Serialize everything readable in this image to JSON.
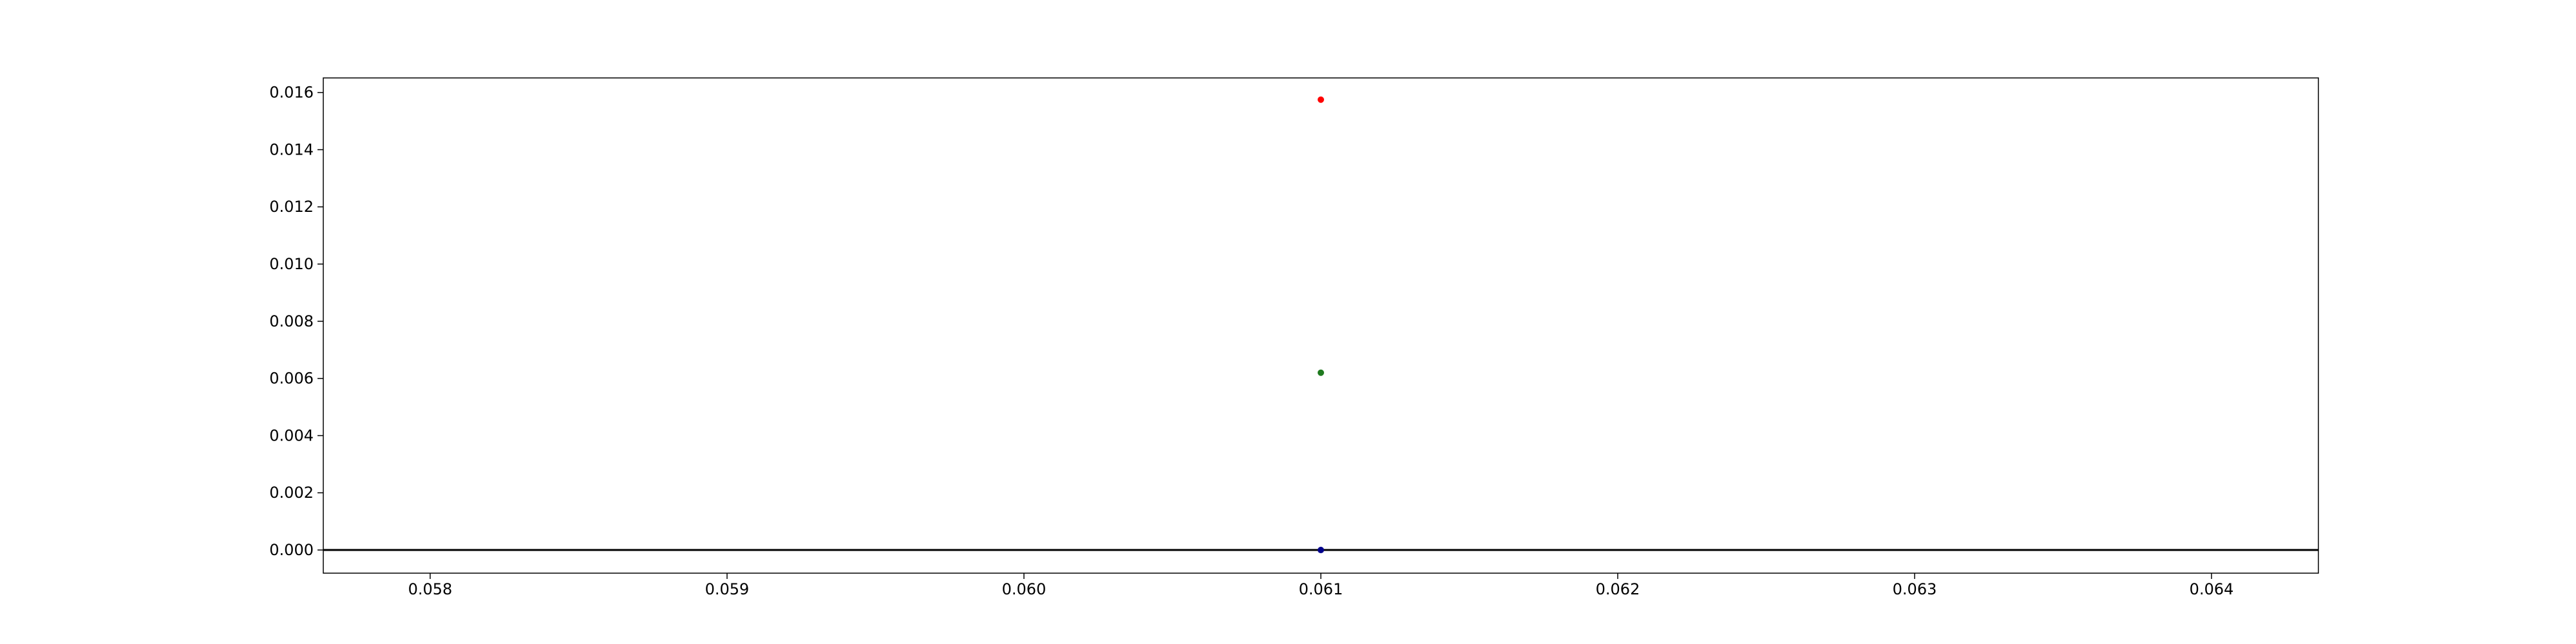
{
  "chart_data": {
    "type": "scatter",
    "title": "",
    "xlabel": "",
    "ylabel": "",
    "xlim": [
      0.05764,
      0.06436
    ],
    "ylim": [
      -0.00081,
      0.01651
    ],
    "grid": false,
    "x_ticks": [
      "0.058",
      "0.059",
      "0.060",
      "0.061",
      "0.062",
      "0.063",
      "0.064"
    ],
    "y_ticks": [
      "0.000",
      "0.002",
      "0.004",
      "0.006",
      "0.008",
      "0.010",
      "0.012",
      "0.014",
      "0.016"
    ],
    "hline": {
      "y": 0.0,
      "color": "#000000"
    },
    "points": [
      {
        "x": 0.061,
        "y": 0.01575,
        "color": "#ff0000"
      },
      {
        "x": 0.061,
        "y": 0.0062,
        "color": "#1f7a1f"
      },
      {
        "x": 0.061,
        "y": 0.0,
        "color": "#00008b"
      }
    ]
  }
}
